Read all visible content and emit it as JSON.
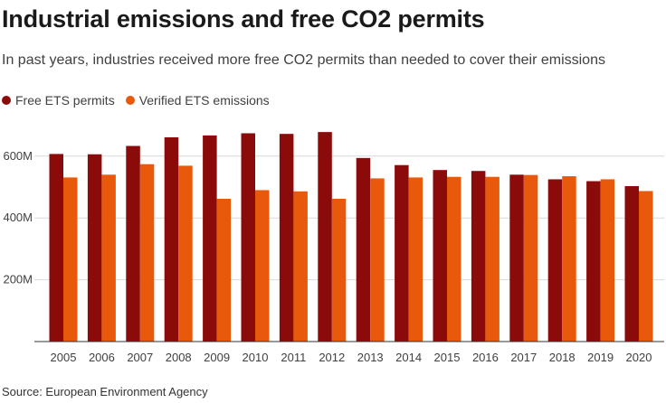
{
  "chart_data": {
    "type": "bar",
    "title": "Industrial emissions and free CO2 permits",
    "subtitle": "In past years, industries received more free CO2 permits than needed to cover their emissions",
    "source": "Source: European Environment Agency",
    "xlabel": "",
    "ylabel": "",
    "ylim": [
      0,
      700
    ],
    "yticks": [
      {
        "value": 200,
        "label": "200M"
      },
      {
        "value": 400,
        "label": "400M"
      },
      {
        "value": 600,
        "label": "600M"
      }
    ],
    "grid": true,
    "legend_position": "top-left",
    "categories": [
      "2005",
      "2006",
      "2007",
      "2008",
      "2009",
      "2010",
      "2011",
      "2012",
      "2013",
      "2014",
      "2015",
      "2016",
      "2017",
      "2018",
      "2019",
      "2020"
    ],
    "series": [
      {
        "name": "Free ETS permits",
        "color": "#8b0a0a",
        "values": [
          607,
          606,
          633,
          661,
          667,
          674,
          672,
          678,
          594,
          571,
          555,
          552,
          540,
          525,
          519,
          503
        ]
      },
      {
        "name": "Verified ETS emissions",
        "color": "#e8590c",
        "values": [
          531,
          540,
          574,
          569,
          462,
          490,
          486,
          462,
          528,
          531,
          533,
          533,
          539,
          535,
          525,
          487
        ]
      }
    ]
  }
}
